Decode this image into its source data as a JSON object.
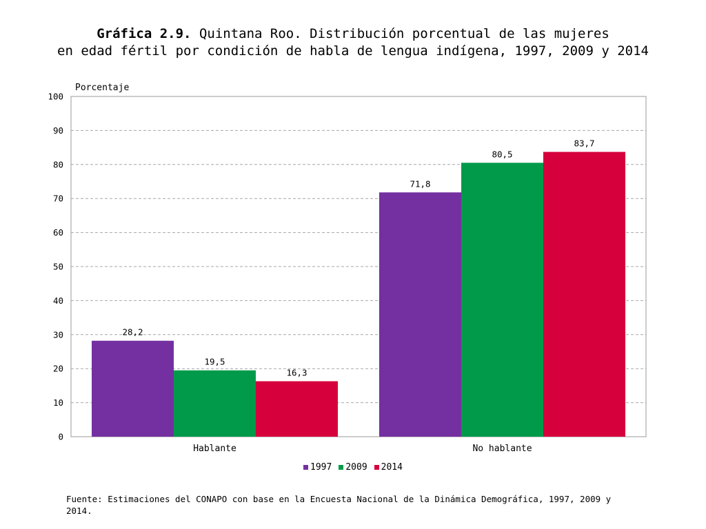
{
  "title": {
    "label": "Gráfica 2.9.",
    "text": "Quintana Roo. Distribución porcentual de las mujeres",
    "line2": "en edad fértil por condición de habla de lengua indígena, 1997, 2009 y 2014"
  },
  "source": "Fuente: Estimaciones del CONAPO con base en la Encuesta Nacional de la Dinámica Demográfica, 1997, 2009 y 2014.",
  "chart_data": {
    "type": "bar",
    "ylabel": "Porcentaje",
    "xlabel": "",
    "ylim": [
      0,
      100
    ],
    "yticks": [
      "0",
      "10",
      "20",
      "30",
      "40",
      "50",
      "60",
      "70",
      "80",
      "90",
      "100"
    ],
    "grid": true,
    "legend_position": "bottom",
    "categories": [
      "Hablante",
      "No hablante"
    ],
    "series": [
      {
        "name": "1997",
        "color": "#7430a0",
        "values": [
          28.2,
          71.8
        ],
        "labels": [
          "28,2",
          "71,8"
        ]
      },
      {
        "name": "2009",
        "color": "#009a4a",
        "values": [
          19.5,
          80.5
        ],
        "labels": [
          "19,5",
          "80,5"
        ]
      },
      {
        "name": "2014",
        "color": "#d6003c",
        "values": [
          16.3,
          83.7
        ],
        "labels": [
          "16,3",
          "83,7"
        ]
      }
    ]
  }
}
